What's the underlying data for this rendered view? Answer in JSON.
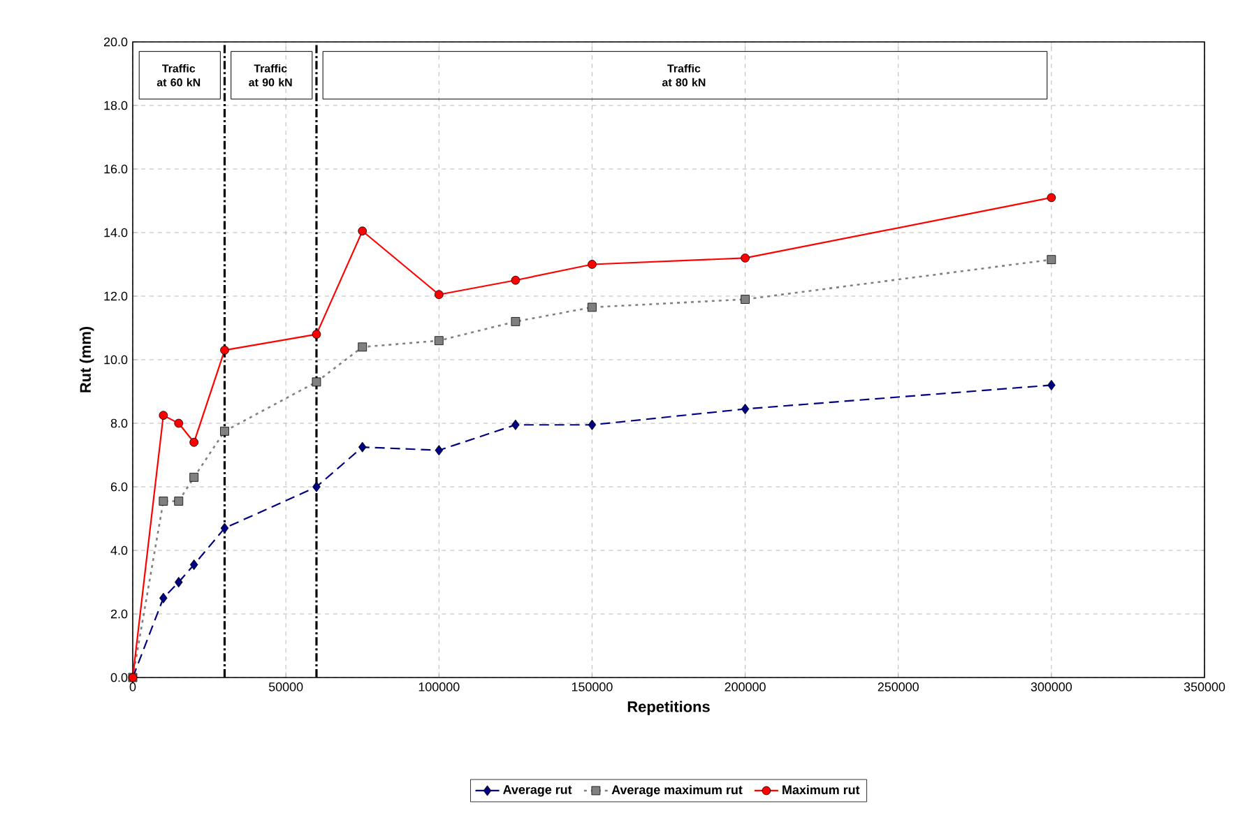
{
  "chart_data": {
    "type": "line",
    "xlabel": "Repetitions",
    "ylabel": "Rut (mm)",
    "x": [
      0,
      10000,
      15000,
      20000,
      30000,
      60000,
      75000,
      100000,
      125000,
      150000,
      200000,
      300000
    ],
    "series": [
      {
        "name": "Average rut",
        "color": "#000080",
        "marker": "diamond",
        "line_style": "dashed",
        "values": [
          0,
          2.5,
          3.0,
          3.55,
          4.7,
          6.0,
          7.25,
          7.15,
          7.95,
          7.95,
          8.45,
          9.2
        ]
      },
      {
        "name": "Average maximum rut",
        "color": "#808080",
        "marker": "square",
        "line_style": "dotted",
        "values": [
          0,
          5.55,
          5.55,
          6.3,
          7.75,
          9.3,
          10.4,
          10.6,
          11.2,
          11.65,
          11.9,
          13.15
        ]
      },
      {
        "name": "Maximum rut",
        "color": "#ff0000",
        "marker": "circle",
        "line_style": "solid",
        "values": [
          0,
          8.25,
          8.0,
          7.4,
          10.3,
          10.8,
          14.05,
          12.05,
          12.5,
          13.0,
          13.2,
          15.1
        ]
      }
    ],
    "xlim": [
      0,
      350000
    ],
    "ylim": [
      0,
      20
    ],
    "xticks": [
      0,
      50000,
      100000,
      150000,
      200000,
      250000,
      300000,
      350000
    ],
    "yticks": [
      {
        "value": 0,
        "label": "0.0"
      },
      {
        "value": 2,
        "label": "2.0"
      },
      {
        "value": 4,
        "label": "4.0"
      },
      {
        "value": 6,
        "label": "6.0"
      },
      {
        "value": 8,
        "label": "8.0"
      },
      {
        "value": 10,
        "label": "10.0"
      },
      {
        "value": 12,
        "label": "12.0"
      },
      {
        "value": 14,
        "label": "14.0"
      },
      {
        "value": 16,
        "label": "16.0"
      },
      {
        "value": 18,
        "label": "18.0"
      },
      {
        "value": 20,
        "label": "20.0"
      }
    ],
    "ref_lines": [
      {
        "axis": "x",
        "value": 30000,
        "color": "#000000",
        "line_style": "dashdot"
      },
      {
        "axis": "x",
        "value": 60000,
        "color": "#000000",
        "line_style": "dashdot"
      }
    ],
    "annotations": [
      "Traffic at 60 kN",
      "Traffic at 90 kN",
      "Traffic at 80 kN"
    ],
    "grid": true,
    "legend": "bottom"
  }
}
